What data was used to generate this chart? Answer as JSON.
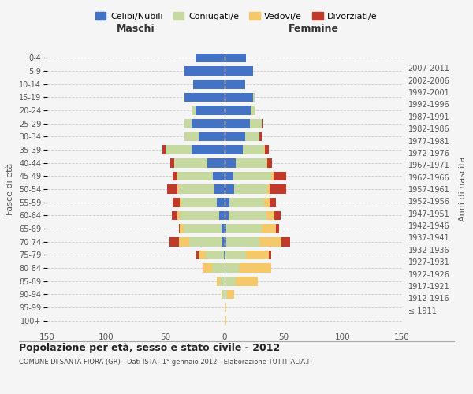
{
  "age_groups": [
    "100+",
    "95-99",
    "90-94",
    "85-89",
    "80-84",
    "75-79",
    "70-74",
    "65-69",
    "60-64",
    "55-59",
    "50-54",
    "45-49",
    "40-44",
    "35-39",
    "30-34",
    "25-29",
    "20-24",
    "15-19",
    "10-14",
    "5-9",
    "0-4"
  ],
  "birth_years": [
    "≤ 1911",
    "1912-1916",
    "1917-1921",
    "1922-1926",
    "1927-1931",
    "1932-1936",
    "1937-1941",
    "1942-1946",
    "1947-1951",
    "1952-1956",
    "1957-1961",
    "1962-1966",
    "1967-1971",
    "1972-1976",
    "1977-1981",
    "1982-1986",
    "1987-1991",
    "1992-1996",
    "1997-2001",
    "2002-2006",
    "2007-2011"
  ],
  "maschi": {
    "celibi": [
      0,
      0,
      0,
      0,
      0,
      1,
      2,
      3,
      5,
      7,
      9,
      10,
      15,
      28,
      22,
      28,
      25,
      34,
      27,
      34,
      25
    ],
    "coniugati": [
      0,
      0,
      2,
      4,
      11,
      15,
      28,
      32,
      33,
      30,
      30,
      30,
      28,
      22,
      12,
      6,
      3,
      1,
      0,
      0,
      0
    ],
    "vedovi": [
      0,
      0,
      1,
      3,
      7,
      6,
      9,
      3,
      2,
      1,
      1,
      1,
      0,
      0,
      0,
      0,
      0,
      0,
      0,
      0,
      0
    ],
    "divorziati": [
      0,
      0,
      0,
      0,
      1,
      2,
      8,
      1,
      5,
      6,
      9,
      3,
      3,
      3,
      0,
      0,
      0,
      0,
      0,
      0,
      0
    ]
  },
  "femmine": {
    "nubili": [
      0,
      0,
      0,
      0,
      0,
      0,
      1,
      1,
      3,
      4,
      8,
      7,
      9,
      15,
      17,
      21,
      22,
      24,
      17,
      24,
      18
    ],
    "coniugate": [
      0,
      0,
      2,
      9,
      12,
      18,
      28,
      30,
      32,
      29,
      28,
      32,
      26,
      18,
      12,
      10,
      4,
      1,
      0,
      0,
      0
    ],
    "vedove": [
      1,
      1,
      6,
      19,
      27,
      19,
      19,
      12,
      7,
      5,
      2,
      2,
      1,
      1,
      0,
      0,
      0,
      0,
      0,
      0,
      0
    ],
    "divorziate": [
      0,
      0,
      0,
      0,
      0,
      2,
      7,
      3,
      5,
      5,
      14,
      11,
      4,
      3,
      2,
      1,
      0,
      0,
      0,
      0,
      0
    ]
  },
  "colors": {
    "celibi_nubili": "#4472c4",
    "coniugati": "#c5d9a0",
    "vedovi": "#f5c96a",
    "divorziati": "#c0392b"
  },
  "xlim": 150,
  "title": "Popolazione per età, sesso e stato civile - 2012",
  "subtitle": "COMUNE DI SANTA FIORA (GR) - Dati ISTAT 1° gennaio 2012 - Elaborazione TUTTITALIA.IT",
  "ylabel_left": "Fasce di età",
  "ylabel_right": "Anni di nascita",
  "xlabel_maschi": "Maschi",
  "xlabel_femmine": "Femmine",
  "legend_labels": [
    "Celibi/Nubili",
    "Coniugati/e",
    "Vedovi/e",
    "Divorziati/e"
  ],
  "background_color": "#f5f5f5",
  "bar_height": 0.7
}
